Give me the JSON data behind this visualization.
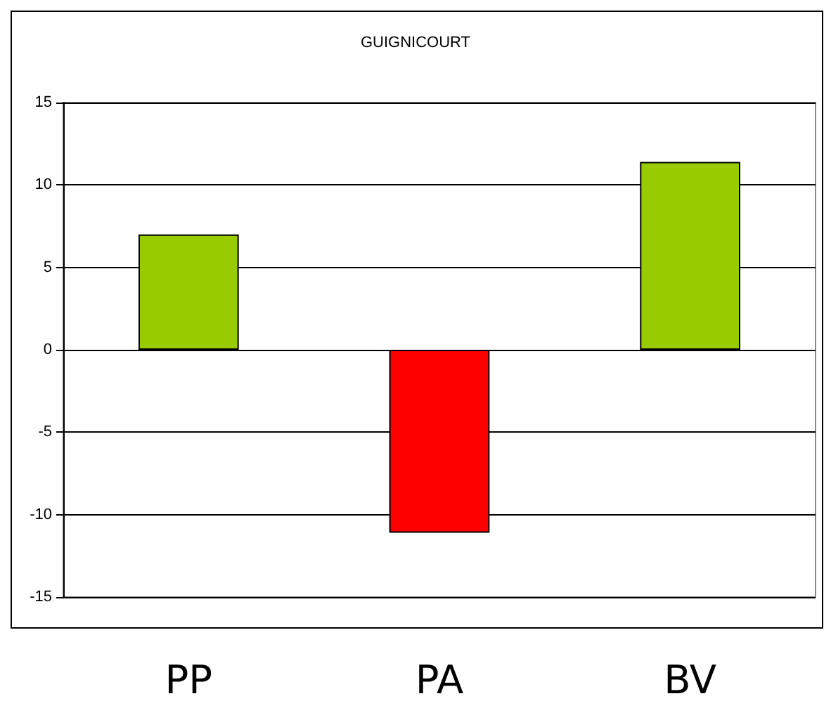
{
  "chart_data": {
    "type": "bar",
    "title": "GUIGNICOURT",
    "categories": [
      "PP",
      "PA",
      "BV"
    ],
    "values": [
      7,
      -11.1,
      11.4
    ],
    "colors": [
      "#99cc00",
      "#ff0000",
      "#99cc00"
    ],
    "ylim": [
      -15,
      15
    ],
    "yticks": [
      -15,
      -10,
      -5,
      0,
      5,
      10,
      15
    ],
    "grid": "y"
  }
}
